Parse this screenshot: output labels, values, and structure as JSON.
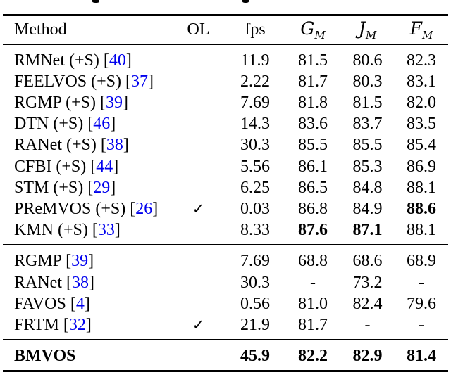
{
  "page": {
    "background": "#ffffff",
    "text_color": "#000000",
    "cite_color": "#0000ee",
    "artifact_note": "two cropped descender fragments from caption line above table"
  },
  "table": {
    "ol_check_symbol": "✓",
    "dash_symbol": "-",
    "columns": [
      {
        "key": "method",
        "label": "Method",
        "script": false
      },
      {
        "key": "ol",
        "label": "OL",
        "script": false
      },
      {
        "key": "fps",
        "label": "fps",
        "script": false
      },
      {
        "key": "g",
        "label": "G",
        "sub": "M",
        "script": true
      },
      {
        "key": "j",
        "label": "J",
        "sub": "M",
        "script": true
      },
      {
        "key": "f",
        "label": "F",
        "sub": "M",
        "script": true
      }
    ],
    "sections": [
      {
        "name": "with-synthetic-data",
        "rows": [
          {
            "method": "RMNet (+S)",
            "cite": "40",
            "ol": false,
            "fps": "11.9",
            "g": "81.5",
            "j": "80.6",
            "f": "82.3",
            "bold": []
          },
          {
            "method": "FEELVOS (+S)",
            "cite": "37",
            "ol": false,
            "fps": "2.22",
            "g": "81.7",
            "j": "80.3",
            "f": "83.1",
            "bold": []
          },
          {
            "method": "RGMP (+S)",
            "cite": "39",
            "ol": false,
            "fps": "7.69",
            "g": "81.8",
            "j": "81.5",
            "f": "82.0",
            "bold": []
          },
          {
            "method": "DTN (+S)",
            "cite": "46",
            "ol": false,
            "fps": "14.3",
            "g": "83.6",
            "j": "83.7",
            "f": "83.5",
            "bold": []
          },
          {
            "method": "RANet (+S)",
            "cite": "38",
            "ol": false,
            "fps": "30.3",
            "g": "85.5",
            "j": "85.5",
            "f": "85.4",
            "bold": []
          },
          {
            "method": "CFBI (+S)",
            "cite": "44",
            "ol": false,
            "fps": "5.56",
            "g": "86.1",
            "j": "85.3",
            "f": "86.9",
            "bold": []
          },
          {
            "method": "STM (+S)",
            "cite": "29",
            "ol": false,
            "fps": "6.25",
            "g": "86.5",
            "j": "84.8",
            "f": "88.1",
            "bold": []
          },
          {
            "method": "PReMVOS (+S)",
            "cite": "26",
            "ol": true,
            "fps": "0.03",
            "g": "86.8",
            "j": "84.9",
            "f": "88.6",
            "bold": [
              "f"
            ]
          },
          {
            "method": "KMN (+S)",
            "cite": "33",
            "ol": false,
            "fps": "8.33",
            "g": "87.6",
            "j": "87.1",
            "f": "88.1",
            "bold": [
              "g",
              "j"
            ]
          }
        ]
      },
      {
        "name": "without-synthetic-data",
        "rows": [
          {
            "method": "RGMP",
            "cite": "39",
            "ol": false,
            "fps": "7.69",
            "g": "68.8",
            "j": "68.6",
            "f": "68.9",
            "bold": []
          },
          {
            "method": "RANet",
            "cite": "38",
            "ol": false,
            "fps": "30.3",
            "g": "-",
            "j": "73.2",
            "f": "-",
            "bold": []
          },
          {
            "method": "FAVOS",
            "cite": "4",
            "ol": false,
            "fps": "0.56",
            "g": "81.0",
            "j": "82.4",
            "f": "79.6",
            "bold": []
          },
          {
            "method": "FRTM",
            "cite": "32",
            "ol": true,
            "fps": "21.9",
            "g": "81.7",
            "j": "-",
            "f": "-",
            "bold": []
          }
        ]
      },
      {
        "name": "ours",
        "rows": [
          {
            "method": "BMVOS",
            "cite": null,
            "ol": false,
            "fps": "45.9",
            "g": "82.2",
            "j": "82.9",
            "f": "81.4",
            "bold": [
              "method",
              "fps",
              "g",
              "j",
              "f"
            ]
          }
        ]
      }
    ]
  }
}
